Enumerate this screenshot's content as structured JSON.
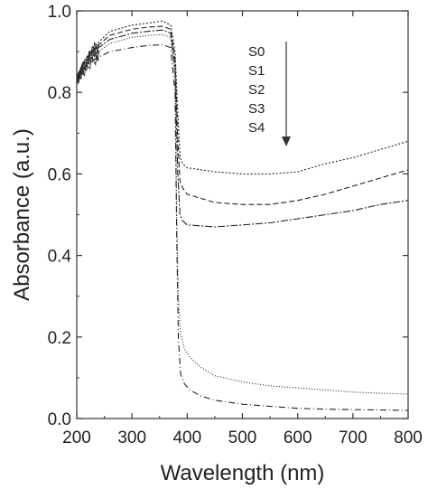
{
  "chart_data": {
    "type": "line",
    "title": "",
    "xlabel": "Wavelength (nm)",
    "ylabel": "Absorbance (a.u.)",
    "xlim": [
      200,
      800
    ],
    "ylim": [
      0.0,
      1.0
    ],
    "xticks": [
      200,
      300,
      400,
      500,
      600,
      700,
      800
    ],
    "xtick_labels": [
      "200",
      "300",
      "400",
      "500",
      "600",
      "700",
      "800"
    ],
    "yticks": [
      0.0,
      0.2,
      0.4,
      0.6,
      0.8,
      1.0
    ],
    "ytick_labels": [
      "0.0",
      "0.2",
      "0.4",
      "0.6",
      "0.8",
      "1.0"
    ],
    "grid": false,
    "legend": {
      "labels": [
        "S0",
        "S1",
        "S2",
        "S3",
        "S4"
      ],
      "arrow_direction": "down"
    },
    "series": [
      {
        "name": "S0",
        "dash": "2,2",
        "points": [
          [
            200,
            0.83
          ],
          [
            210,
            0.87
          ],
          [
            230,
            0.91
          ],
          [
            260,
            0.95
          ],
          [
            300,
            0.965
          ],
          [
            330,
            0.97
          ],
          [
            355,
            0.975
          ],
          [
            370,
            0.965
          ],
          [
            378,
            0.9
          ],
          [
            383,
            0.75
          ],
          [
            387,
            0.64
          ],
          [
            392,
            0.625
          ],
          [
            400,
            0.615
          ],
          [
            450,
            0.605
          ],
          [
            500,
            0.6
          ],
          [
            550,
            0.6
          ],
          [
            600,
            0.605
          ],
          [
            650,
            0.625
          ],
          [
            700,
            0.64
          ],
          [
            750,
            0.66
          ],
          [
            800,
            0.68
          ]
        ]
      },
      {
        "name": "S1",
        "dash": "6,3",
        "points": [
          [
            200,
            0.83
          ],
          [
            210,
            0.87
          ],
          [
            230,
            0.905
          ],
          [
            260,
            0.94
          ],
          [
            300,
            0.955
          ],
          [
            330,
            0.96
          ],
          [
            355,
            0.962
          ],
          [
            370,
            0.955
          ],
          [
            378,
            0.88
          ],
          [
            383,
            0.68
          ],
          [
            387,
            0.58
          ],
          [
            392,
            0.565
          ],
          [
            400,
            0.55
          ],
          [
            450,
            0.53
          ],
          [
            500,
            0.525
          ],
          [
            550,
            0.525
          ],
          [
            600,
            0.535
          ],
          [
            650,
            0.55
          ],
          [
            700,
            0.57
          ],
          [
            750,
            0.59
          ],
          [
            800,
            0.61
          ]
        ]
      },
      {
        "name": "S2",
        "dash": "8,2,2,2",
        "points": [
          [
            200,
            0.83
          ],
          [
            210,
            0.865
          ],
          [
            230,
            0.9
          ],
          [
            260,
            0.93
          ],
          [
            300,
            0.945
          ],
          [
            330,
            0.95
          ],
          [
            355,
            0.953
          ],
          [
            370,
            0.945
          ],
          [
            378,
            0.86
          ],
          [
            383,
            0.6
          ],
          [
            387,
            0.5
          ],
          [
            392,
            0.485
          ],
          [
            400,
            0.475
          ],
          [
            450,
            0.47
          ],
          [
            500,
            0.475
          ],
          [
            550,
            0.48
          ],
          [
            600,
            0.49
          ],
          [
            650,
            0.5
          ],
          [
            700,
            0.51
          ],
          [
            750,
            0.525
          ],
          [
            800,
            0.535
          ]
        ]
      },
      {
        "name": "S3",
        "dash": "1,2",
        "points": [
          [
            200,
            0.83
          ],
          [
            210,
            0.86
          ],
          [
            230,
            0.89
          ],
          [
            260,
            0.92
          ],
          [
            300,
            0.935
          ],
          [
            330,
            0.94
          ],
          [
            355,
            0.942
          ],
          [
            370,
            0.935
          ],
          [
            378,
            0.84
          ],
          [
            381,
            0.5
          ],
          [
            384,
            0.3
          ],
          [
            388,
            0.21
          ],
          [
            395,
            0.17
          ],
          [
            405,
            0.15
          ],
          [
            425,
            0.125
          ],
          [
            450,
            0.105
          ],
          [
            500,
            0.09
          ],
          [
            550,
            0.08
          ],
          [
            600,
            0.075
          ],
          [
            650,
            0.07
          ],
          [
            700,
            0.065
          ],
          [
            750,
            0.062
          ],
          [
            800,
            0.06
          ]
        ]
      },
      {
        "name": "S4",
        "dash": "7,3,1,3",
        "points": [
          [
            200,
            0.83
          ],
          [
            210,
            0.855
          ],
          [
            230,
            0.88
          ],
          [
            260,
            0.9
          ],
          [
            300,
            0.91
          ],
          [
            330,
            0.915
          ],
          [
            355,
            0.917
          ],
          [
            370,
            0.91
          ],
          [
            378,
            0.8
          ],
          [
            381,
            0.45
          ],
          [
            384,
            0.2
          ],
          [
            388,
            0.11
          ],
          [
            395,
            0.085
          ],
          [
            405,
            0.07
          ],
          [
            425,
            0.055
          ],
          [
            450,
            0.045
          ],
          [
            500,
            0.035
          ],
          [
            550,
            0.03
          ],
          [
            600,
            0.025
          ],
          [
            650,
            0.023
          ],
          [
            700,
            0.022
          ],
          [
            750,
            0.021
          ],
          [
            800,
            0.02
          ]
        ]
      }
    ]
  }
}
